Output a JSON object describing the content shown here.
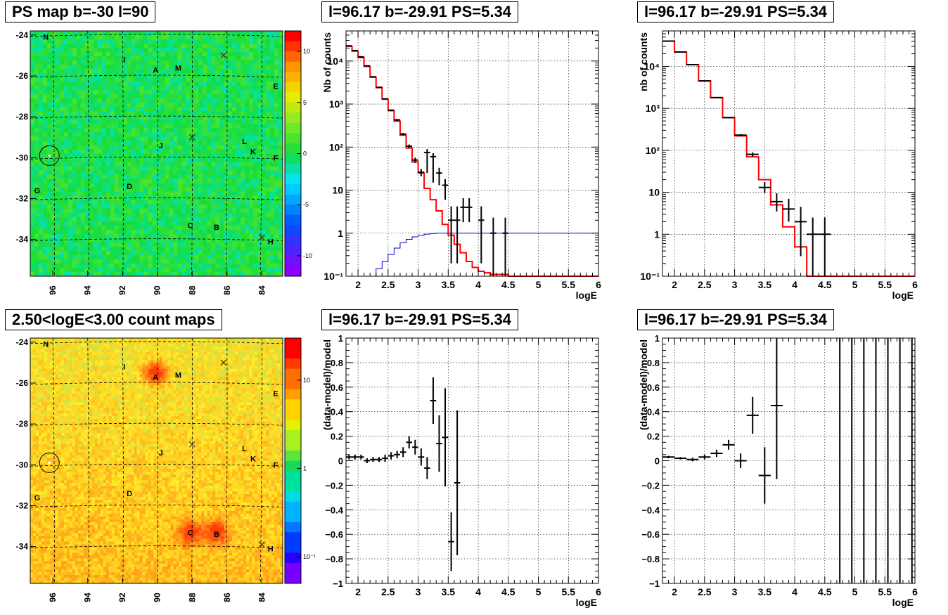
{
  "colors": {
    "data_points": "#000000",
    "model_hist": "#ff0000",
    "efficiency_curve": "#0000cc",
    "grid": "#000000",
    "map_base_top": "#22dd33",
    "map_base_bottom": "#b8e83a"
  },
  "icons": {
    "source_marker": "x-cross-icon",
    "target_circle": "circle-icon"
  },
  "panels": [
    {
      "id": "ps-map",
      "title": "PS map b=-30 l=90",
      "chart_data": {
        "type": "heatmap",
        "title": "PS map b=-30 l=90",
        "x_ticks": [
          "96",
          "94",
          "92",
          "90",
          "88",
          "86",
          "84"
        ],
        "y_ticks": [
          "-24",
          "-26",
          "-28",
          "-30",
          "-32",
          "-34"
        ],
        "xlim": [
          97.3,
          82.8
        ],
        "ylim": [
          -35.8,
          -23.8
        ],
        "colorbar": {
          "scale": "linear",
          "range": [
            -12,
            12
          ],
          "ticks": [
            "10",
            "5",
            "0",
            "-5",
            "-10"
          ]
        },
        "sources": [
          {
            "label": "N",
            "l": 96.4,
            "b": -24.1
          },
          {
            "label": "I",
            "l": 91.9,
            "b": -25.2
          },
          {
            "label": "A",
            "l": 90.1,
            "b": -25.7
          },
          {
            "label": "M",
            "l": 88.8,
            "b": -25.6
          },
          {
            "label": "E",
            "l": 83.2,
            "b": -26.5
          },
          {
            "label": "J",
            "l": 89.8,
            "b": -29.4
          },
          {
            "label": "L",
            "l": 85.0,
            "b": -29.2
          },
          {
            "label": "K",
            "l": 84.5,
            "b": -29.7
          },
          {
            "label": "F",
            "l": 83.2,
            "b": -30.0
          },
          {
            "label": "G",
            "l": 96.9,
            "b": -31.6
          },
          {
            "label": "D",
            "l": 91.6,
            "b": -31.4
          },
          {
            "label": "C",
            "l": 88.1,
            "b": -33.3
          },
          {
            "label": "B",
            "l": 86.6,
            "b": -33.4
          },
          {
            "label": "H",
            "l": 83.5,
            "b": -34.1
          }
        ],
        "crosses": [
          {
            "l": 86.2,
            "b": -25.0
          },
          {
            "l": 88.0,
            "b": -29.0
          },
          {
            "l": 84.0,
            "b": -33.9
          }
        ],
        "circle": {
          "l": 96.2,
          "b": -29.9
        },
        "hotspots": []
      }
    },
    {
      "id": "count-map",
      "title": "2.50<logE<3.00 count maps",
      "chart_data": {
        "type": "heatmap",
        "title": "2.50<logE<3.00 count maps",
        "x_ticks": [
          "96",
          "94",
          "92",
          "90",
          "88",
          "86",
          "84"
        ],
        "y_ticks": [
          "-24",
          "-26",
          "-28",
          "-30",
          "-32",
          "-34"
        ],
        "xlim": [
          97.3,
          82.8
        ],
        "ylim": [
          -35.8,
          -23.8
        ],
        "colorbar": {
          "scale": "log",
          "range": [
            0.05,
            30
          ],
          "ticks": [
            "10",
            "1",
            "10⁻¹"
          ]
        },
        "sources": [
          {
            "label": "N",
            "l": 96.4,
            "b": -24.1
          },
          {
            "label": "I",
            "l": 91.9,
            "b": -25.2
          },
          {
            "label": "A",
            "l": 90.1,
            "b": -25.7
          },
          {
            "label": "M",
            "l": 88.8,
            "b": -25.6
          },
          {
            "label": "E",
            "l": 83.2,
            "b": -26.5
          },
          {
            "label": "J",
            "l": 89.8,
            "b": -29.4
          },
          {
            "label": "L",
            "l": 85.0,
            "b": -29.2
          },
          {
            "label": "K",
            "l": 84.5,
            "b": -29.7
          },
          {
            "label": "F",
            "l": 83.2,
            "b": -30.0
          },
          {
            "label": "G",
            "l": 96.9,
            "b": -31.6
          },
          {
            "label": "D",
            "l": 91.6,
            "b": -31.4
          },
          {
            "label": "C",
            "l": 88.1,
            "b": -33.3
          },
          {
            "label": "B",
            "l": 86.6,
            "b": -33.4
          },
          {
            "label": "H",
            "l": 83.5,
            "b": -34.1
          }
        ],
        "crosses": [
          {
            "l": 86.2,
            "b": -25.0
          },
          {
            "l": 88.0,
            "b": -29.0
          },
          {
            "l": 84.0,
            "b": -33.9
          }
        ],
        "circle": {
          "l": 96.2,
          "b": -29.9
        },
        "hotspots": [
          {
            "l": 90.1,
            "b": -25.5,
            "strength": 1.0
          },
          {
            "l": 88.1,
            "b": -33.3,
            "strength": 0.75
          },
          {
            "l": 86.6,
            "b": -33.3,
            "strength": 0.8
          }
        ]
      }
    },
    {
      "id": "spectrum-fine",
      "title": "l=96.17 b=-29.91 PS=5.34",
      "chart_data": {
        "type": "line",
        "title": "l=96.17 b=-29.91 PS=5.34",
        "xlabel": "logE",
        "ylabel": "Nb of counts",
        "xlim": [
          1.8,
          6.0
        ],
        "ylim": [
          0.1,
          50000
        ],
        "yscale": "log",
        "grid": true,
        "x_ticks": [
          "2",
          "2.5",
          "3",
          "3.5",
          "4",
          "4.5",
          "5",
          "5.5",
          "6"
        ],
        "y_ticks": [
          "10⁻¹",
          "1",
          "10",
          "10²",
          "10³",
          "10⁴"
        ],
        "series": [
          {
            "kind": "step",
            "edges": [
              1.8,
              1.9,
              2.0,
              2.1,
              2.2,
              2.3,
              2.4,
              2.5,
              2.6,
              2.7,
              2.8,
              2.9,
              3.0,
              3.1,
              3.2,
              3.3,
              3.4,
              3.5,
              3.6,
              3.7,
              3.8,
              3.9,
              4.0,
              4.1,
              4.2,
              4.3,
              4.4,
              4.5,
              4.6,
              6.0
            ],
            "values": [
              22000,
              17000,
              12000,
              7500,
              4200,
              2400,
              1300,
              700,
              400,
              190,
              95,
              45,
              25,
              11,
              6,
              3.3,
              1.6,
              0.9,
              0.55,
              0.35,
              0.22,
              0.16,
              0.13,
              0.12,
              0.11,
              0.11,
              0.11,
              0.1,
              0.1
            ]
          },
          {
            "kind": "step",
            "edges": [
              2.2,
              2.3,
              2.4,
              2.5,
              2.6,
              2.7,
              2.8,
              2.9,
              3.0,
              3.1,
              3.2,
              3.3,
              3.5,
              6.0
            ],
            "values": [
              0.1,
              0.15,
              0.22,
              0.32,
              0.45,
              0.6,
              0.72,
              0.82,
              0.9,
              0.95,
              0.98,
              1.0,
              1.0
            ]
          },
          {
            "kind": "points",
            "x": [
              1.85,
              1.95,
              2.05,
              2.15,
              2.25,
              2.35,
              2.45,
              2.55,
              2.65,
              2.75,
              2.85,
              2.95,
              3.05,
              3.15,
              3.25,
              3.35,
              3.45,
              3.55,
              3.65,
              3.75,
              3.85,
              4.05,
              4.25,
              4.45
            ],
            "y": [
              22500,
              17500,
              12500,
              7700,
              4300,
              2450,
              1320,
              720,
              430,
              200,
              105,
              50,
              26,
              75,
              60,
              25,
              13,
              2,
              2,
              4,
              4,
              2,
              1,
              1
            ],
            "yerr_lo": [
              150,
              130,
              110,
              90,
              65,
              50,
              36,
              27,
              21,
              14,
              10,
              7,
              5,
              50,
              45,
              12,
              7,
              1.8,
              1.8,
              2.2,
              2.2,
              1.8,
              0.9,
              0.9
            ],
            "yerr_hi": [
              150,
              130,
              110,
              90,
              65,
              50,
              36,
              27,
              21,
              14,
              10,
              7,
              5,
              15,
              12,
              8,
              5,
              2.2,
              2.2,
              2.5,
              2.5,
              2.2,
              1.3,
              1.3
            ],
            "xerr": 0.05
          }
        ]
      }
    },
    {
      "id": "spectrum-coarse",
      "title": "l=96.17 b=-29.91 PS=5.34",
      "chart_data": {
        "type": "line",
        "title": "l=96.17 b=-29.91 PS=5.34",
        "xlabel": "logE",
        "ylabel": "nb of counts",
        "xlim": [
          1.8,
          6.0
        ],
        "ylim": [
          0.1,
          70000
        ],
        "yscale": "log",
        "grid": true,
        "x_ticks": [
          "2",
          "2.5",
          "3",
          "3.5",
          "4",
          "4.5",
          "5",
          "5.5",
          "6"
        ],
        "y_ticks": [
          "10⁻¹",
          "1",
          "10",
          "10²",
          "10³",
          "10⁴"
        ],
        "series": [
          {
            "kind": "step",
            "edges": [
              1.8,
              2.0,
              2.2,
              2.4,
              2.6,
              2.8,
              3.0,
              3.2,
              3.4,
              3.6,
              3.8,
              4.0,
              4.2,
              6.0
            ],
            "values": [
              40000,
              22000,
              11000,
              4500,
              1800,
              600,
              220,
              70,
              20,
              5,
              1.5,
              0.5,
              0.1
            ]
          },
          {
            "kind": "points",
            "x": [
              1.9,
              2.1,
              2.3,
              2.5,
              2.7,
              2.9,
              3.1,
              3.3,
              3.5,
              3.7,
              3.9,
              4.1,
              4.3,
              4.5
            ],
            "y": [
              40000,
              22000,
              11000,
              4500,
              1800,
              600,
              230,
              80,
              13,
              6,
              4,
              2,
              1,
              1
            ],
            "yerr_lo": [
              200,
              150,
              100,
              70,
              40,
              25,
              15,
              9,
              3.5,
              2.5,
              2,
              1.7,
              0.95,
              0.95
            ],
            "yerr_hi": [
              200,
              150,
              100,
              70,
              40,
              25,
              15,
              9,
              4.5,
              3.5,
              3,
              2.5,
              1.5,
              1.5
            ],
            "xerr": 0.1
          }
        ]
      }
    },
    {
      "id": "residual-fine",
      "title": "l=96.17 b=-29.91 PS=5.34",
      "chart_data": {
        "type": "scatter",
        "title": "l=96.17 b=-29.91 PS=5.34",
        "xlabel": "logE",
        "ylabel": "(data-model)/model",
        "xlim": [
          1.8,
          6.0
        ],
        "ylim": [
          -1,
          1
        ],
        "yscale": "linear",
        "grid": true,
        "x_ticks": [
          "2",
          "2.5",
          "3",
          "3.5",
          "4",
          "4.5",
          "5",
          "5.5",
          "6"
        ],
        "y_ticks": [
          "−1",
          "−0.8",
          "−0.6",
          "−0.4",
          "−0.2",
          "0",
          "0.2",
          "0.4",
          "0.6",
          "0.8",
          "1"
        ],
        "series": [
          {
            "kind": "points",
            "x": [
              1.85,
              1.95,
              2.05,
              2.15,
              2.25,
              2.35,
              2.45,
              2.55,
              2.65,
              2.75,
              2.85,
              2.95,
              3.05,
              3.15,
              3.25,
              3.35,
              3.45,
              3.55,
              3.65
            ],
            "y": [
              0.03,
              0.03,
              0.03,
              0.0,
              0.01,
              0.01,
              0.02,
              0.04,
              0.05,
              0.07,
              0.15,
              0.11,
              0.03,
              -0.06,
              0.49,
              0.14,
              0.19,
              -0.66,
              -0.18
            ],
            "yerr": [
              0.02,
              0.02,
              0.02,
              0.02,
              0.02,
              0.02,
              0.03,
              0.03,
              0.03,
              0.04,
              0.05,
              0.06,
              0.07,
              0.09,
              0.19,
              0.23,
              0.4,
              0.24,
              0.59
            ],
            "xerr": 0.05
          }
        ]
      }
    },
    {
      "id": "residual-coarse",
      "title": "l=96.17 b=-29.91 PS=5.34",
      "chart_data": {
        "type": "scatter",
        "title": "l=96.17 b=-29.91 PS=5.34",
        "xlabel": "logE",
        "ylabel": "(data-model)/model",
        "xlim": [
          1.8,
          6.0
        ],
        "ylim": [
          -1,
          1
        ],
        "yscale": "linear",
        "grid": true,
        "x_ticks": [
          "2",
          "2.5",
          "3",
          "3.5",
          "4",
          "4.5",
          "5",
          "5.5",
          "6"
        ],
        "y_ticks": [
          "−1",
          "−0.8",
          "−0.6",
          "−0.4",
          "−0.2",
          "0",
          "0.2",
          "0.4",
          "0.6",
          "0.8",
          "1"
        ],
        "series": [
          {
            "kind": "points",
            "x": [
              1.9,
              2.1,
              2.3,
              2.5,
              2.7,
              2.9,
              3.1,
              3.3,
              3.5,
              3.7
            ],
            "y": [
              0.03,
              0.02,
              0.01,
              0.03,
              0.06,
              0.13,
              0.0,
              0.37,
              -0.12,
              0.45
            ],
            "yerr": [
              0.01,
              0.01,
              0.015,
              0.02,
              0.03,
              0.04,
              0.06,
              0.15,
              0.23,
              0.6
            ],
            "xerr": 0.1
          },
          {
            "kind": "vlines",
            "x": [
              4.75,
              4.95,
              5.15,
              5.35,
              5.55,
              5.75,
              5.95
            ]
          }
        ]
      }
    }
  ]
}
